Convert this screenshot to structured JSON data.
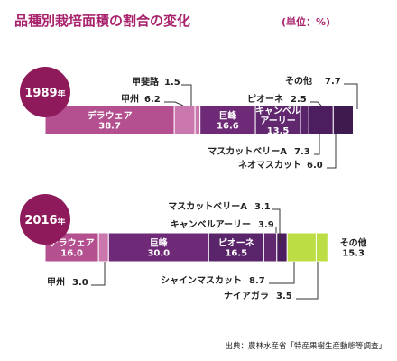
{
  "title": "品種別栽培面積の割合の変化",
  "unit": "(単位：%)",
  "source": "出典：農林水産省「特産果樹生産動態等調査」",
  "colors": {
    "title": "#a8236c",
    "year_badge": "#8f1a5b",
    "delaware": "#b4508f",
    "minor": "#ca77ad",
    "kyoho": "#6e2a76",
    "pione": "#59246a",
    "campbell": "#61276f",
    "muscat_bailey": "#4c1e5f",
    "neo_muscat": "#3e1a4e",
    "shine_muscat": "#bcdd44",
    "other": "#ffffff",
    "leader": "#333333"
  },
  "chart_data": [
    {
      "type": "bar",
      "stacked": true,
      "orientation": "horizontal",
      "year": "1989",
      "year_suffix": "年",
      "xlim": [
        0,
        100
      ],
      "series": [
        {
          "name": "デラウェア",
          "value": 38.7,
          "value_text": "38.7",
          "label": "inside",
          "color": "delaware"
        },
        {
          "name": "甲州",
          "value": 6.2,
          "value_text": "6.2",
          "label": "callout",
          "color": "minor"
        },
        {
          "name": "甲斐路",
          "value": 1.5,
          "value_text": "1.5",
          "label": "callout",
          "color": "minor"
        },
        {
          "name": "巨峰",
          "value": 16.6,
          "value_text": "16.6",
          "label": "inside",
          "color": "kyoho"
        },
        {
          "name": "キャンベルアーリー",
          "lines": [
            "キャンベル",
            "アーリー"
          ],
          "value": 13.5,
          "value_text": "13.5",
          "label": "inside",
          "color": "campbell"
        },
        {
          "name": "ピオーネ",
          "value": 2.5,
          "value_text": "2.5",
          "label": "callout",
          "color": "pione"
        },
        {
          "name": "マスカットベリーA",
          "value": 7.3,
          "value_text": "7.3",
          "label": "callout",
          "color": "muscat_bailey"
        },
        {
          "name": "ネオマスカット",
          "value": 6.0,
          "value_text": "6.0",
          "label": "callout",
          "color": "neo_muscat"
        },
        {
          "name": "その他",
          "value": 7.7,
          "value_text": "7.7",
          "label": "callout",
          "color": "other"
        }
      ]
    },
    {
      "type": "bar",
      "stacked": true,
      "orientation": "horizontal",
      "year": "2016",
      "year_suffix": "年",
      "xlim": [
        0,
        100
      ],
      "series": [
        {
          "name": "デラウェア",
          "value": 16.0,
          "value_text": "16.0",
          "label": "inside",
          "color": "delaware"
        },
        {
          "name": "甲州",
          "value": 3.0,
          "value_text": "3.0",
          "label": "callout",
          "color": "minor"
        },
        {
          "name": "巨峰",
          "value": 30.0,
          "value_text": "30.0",
          "label": "inside",
          "color": "kyoho"
        },
        {
          "name": "ピオーネ",
          "value": 16.5,
          "value_text": "16.5",
          "label": "inside",
          "color": "pione"
        },
        {
          "name": "キャンベルアーリー",
          "value": 3.9,
          "value_text": "3.9",
          "label": "callout",
          "color": "campbell"
        },
        {
          "name": "マスカットベリーA",
          "value": 3.1,
          "value_text": "3.1",
          "label": "callout",
          "color": "muscat_bailey"
        },
        {
          "name": "シャインマスカット",
          "value": 8.7,
          "value_text": "8.7",
          "label": "callout",
          "color": "shine_muscat"
        },
        {
          "name": "ナイアガラ",
          "value": 3.5,
          "value_text": "3.5",
          "label": "callout",
          "color": "shine_muscat"
        },
        {
          "name": "その他",
          "value": 15.3,
          "value_text": "15.3",
          "label": "inside",
          "color": "other"
        }
      ]
    }
  ]
}
